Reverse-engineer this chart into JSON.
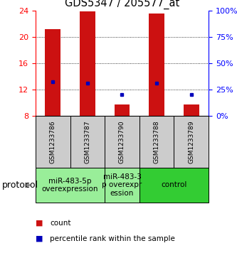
{
  "title": "GDS5347 / 205577_at",
  "samples": [
    "GSM1233786",
    "GSM1233787",
    "GSM1233790",
    "GSM1233788",
    "GSM1233789"
  ],
  "red_bar_bottom": [
    8,
    8,
    8,
    8,
    8
  ],
  "red_bar_top": [
    21.2,
    23.8,
    9.8,
    23.5,
    9.8
  ],
  "blue_dot_y": [
    13.2,
    13.0,
    11.3,
    13.0,
    11.3
  ],
  "ylim": [
    8,
    24
  ],
  "yticks_left": [
    8,
    12,
    16,
    20,
    24
  ],
  "yticks_right_pct": [
    0,
    25,
    50,
    75,
    100
  ],
  "groups": [
    {
      "label": "miR-483-5p\noverexpression",
      "samples": [
        0,
        1
      ],
      "color": "#99ee99"
    },
    {
      "label": "miR-483-3\np overexpr\nession",
      "samples": [
        2
      ],
      "color": "#99ee99"
    },
    {
      "label": "control",
      "samples": [
        3,
        4
      ],
      "color": "#33cc33"
    }
  ],
  "protocol_label": "protocol",
  "legend_red_label": "count",
  "legend_blue_label": "percentile rank within the sample",
  "bar_color": "#cc1111",
  "dot_color": "#0000bb",
  "sample_box_color": "#cccccc",
  "bar_width": 0.45,
  "title_fontsize": 10.5,
  "tick_fontsize": 8,
  "label_fontsize": 6.5,
  "proto_fontsize": 7.5,
  "legend_fontsize": 7.5
}
